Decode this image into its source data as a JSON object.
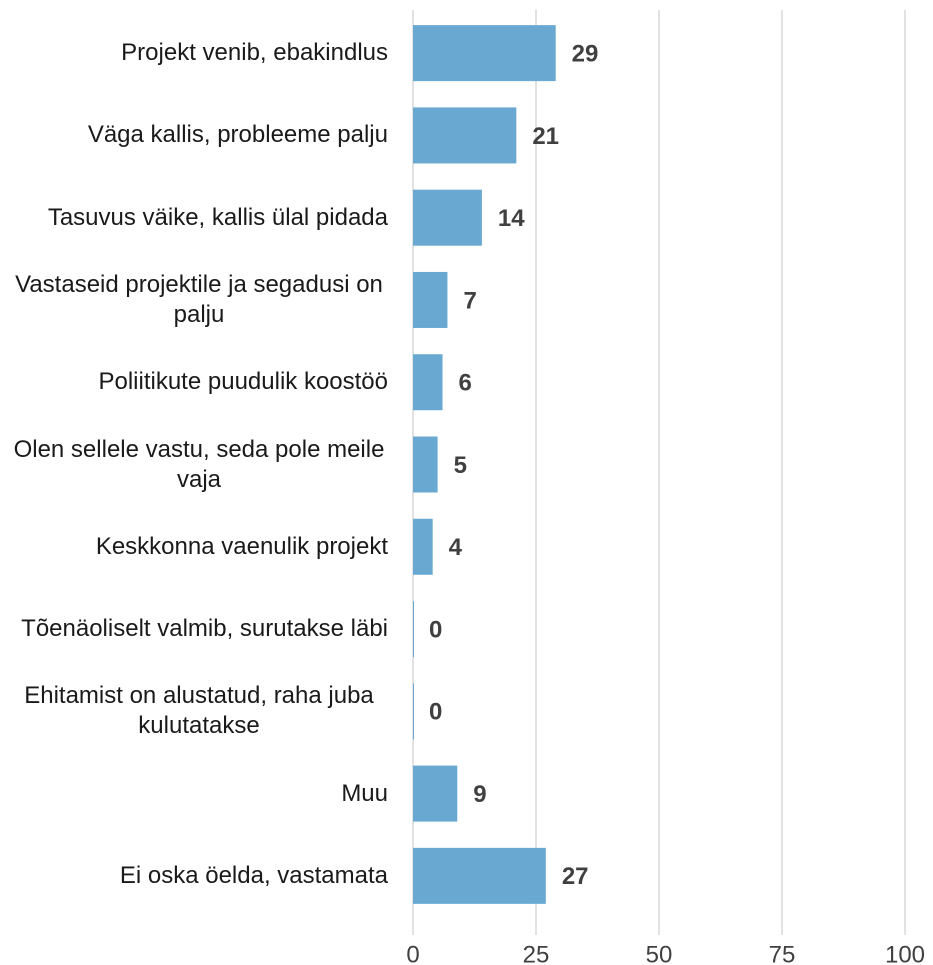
{
  "chart_data": {
    "type": "barh",
    "categories": [
      "Projekt venib, ebakindlus",
      "Väga kallis, probleeme palju",
      "Tasuvus väike, kallis ülal pidada",
      "Vastaseid projektile ja segadusi on palju",
      "Poliitikute puudulik koostöö",
      "Olen sellele vastu, seda pole meile vaja",
      "Keskkonna vaenulik projekt",
      "Tõenäoliselt valmib, surutakse läbi",
      "Ehitamist on alustatud, raha juba kulutatakse",
      "Muu",
      "Ei oska öelda, vastamata"
    ],
    "values": [
      29,
      21,
      14,
      7,
      6,
      5,
      4,
      0,
      0,
      9,
      27
    ],
    "color": "#68a8d1",
    "xlim": [
      0,
      100
    ],
    "xticks": [
      0,
      25,
      50,
      75,
      100
    ],
    "grid": true
  }
}
